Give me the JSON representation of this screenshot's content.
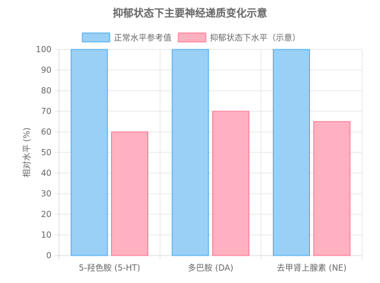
{
  "chart_data": {
    "type": "bar",
    "title": "抑郁状态下主要神经递质变化示意",
    "xlabel": "",
    "ylabel": "相对水平 (%)",
    "categories": [
      "5-羟色胺 (5-HT)",
      "多巴胺 (DA)",
      "去甲肾上腺素 (NE)"
    ],
    "series": [
      {
        "name": "正常水平参考值",
        "values": [
          100,
          100,
          100
        ],
        "fill": "#9ad0f5",
        "stroke": "#36a2eb"
      },
      {
        "name": "抑郁状态下水平（示意）",
        "values": [
          60,
          70,
          65
        ],
        "fill": "#ffb1c1",
        "stroke": "#ff6384"
      }
    ],
    "ylim": [
      0,
      100
    ],
    "yticks": [
      0,
      10,
      20,
      30,
      40,
      50,
      60,
      70,
      80,
      90,
      100
    ],
    "grid": true,
    "legend_position": "top"
  }
}
